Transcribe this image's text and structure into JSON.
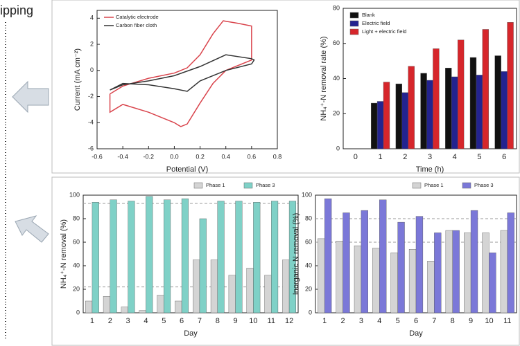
{
  "side_label": "ipping",
  "chart_data": [
    {
      "type": "line",
      "xlabel": "Potential (V)",
      "ylabel": "Current (mA cm⁻²)",
      "xlim": [
        -0.6,
        0.8
      ],
      "xticks": [
        -0.6,
        -0.4,
        -0.2,
        {
          "value": 0,
          "label": "0.0"
        },
        0.2,
        0.4,
        0.6,
        0.8
      ],
      "ylim": [
        -6,
        4.6
      ],
      "yticks": [
        -6,
        -4,
        -2,
        0,
        2,
        4
      ],
      "legend": "upper-left",
      "series": [
        {
          "name": "Catalytic electrode",
          "color": "#d9444c",
          "x": [
            -0.5,
            -0.4,
            -0.2,
            0,
            0.1,
            0.2,
            0.3,
            0.38,
            0.5,
            0.6,
            0.6,
            0.4,
            0.3,
            0.2,
            0.1,
            0.05,
            0,
            -0.2,
            -0.4,
            -0.5,
            -0.5
          ],
          "values": [
            -1.8,
            -1.2,
            -0.6,
            -0.2,
            0.2,
            1.2,
            2.8,
            3.8,
            3.6,
            3.4,
            0.8,
            0,
            -1,
            -2.5,
            -4.1,
            -4.3,
            -4,
            -3.2,
            -2.6,
            -3.2,
            -1.8
          ]
        },
        {
          "name": "Carbon fiber cloth",
          "color": "#333333",
          "x": [
            -0.5,
            -0.4,
            -0.2,
            0,
            0.2,
            0.4,
            0.6,
            0.62,
            0.6,
            0.4,
            0.2,
            0.1,
            0,
            -0.2,
            -0.4,
            -0.5,
            -0.5
          ],
          "values": [
            -1.5,
            -1.1,
            -0.8,
            -0.4,
            0.3,
            1.2,
            0.9,
            0.8,
            0.5,
            0,
            -0.8,
            -1.6,
            -1.4,
            -1.1,
            -1.0,
            -1.5,
            -1.5
          ]
        }
      ]
    },
    {
      "type": "bar",
      "xlabel": "Time (h)",
      "ylabel": "NH₄⁺-N removal rate (%)",
      "categories": [
        "0",
        "1",
        "2",
        "3",
        "4",
        "5",
        "6"
      ],
      "ylim": [
        0,
        80
      ],
      "yticks": [
        0,
        20,
        40,
        60,
        80
      ],
      "legend": "upper-left",
      "series": [
        {
          "name": "Blank",
          "color": "#111111",
          "values": [
            null,
            26,
            37,
            43,
            46,
            52,
            53
          ]
        },
        {
          "name": "Electric field",
          "color": "#23238f",
          "values": [
            null,
            27,
            32,
            39,
            41,
            42,
            44
          ]
        },
        {
          "name": "Light + electric field",
          "color": "#d6262b",
          "values": [
            null,
            38,
            47,
            57,
            62,
            68,
            72
          ]
        }
      ]
    },
    {
      "type": "bar",
      "xlabel": "Day",
      "ylabel": "NH₄⁺-N removal (%)",
      "categories": [
        "1",
        "2",
        "3",
        "4",
        "5",
        "6",
        "7",
        "8",
        "9",
        "10",
        "11",
        "12"
      ],
      "ylim": [
        0,
        100
      ],
      "yticks": [
        0,
        20,
        40,
        60,
        80,
        100
      ],
      "legend": "above",
      "reference_lines": [
        93,
        22
      ],
      "series": [
        {
          "name": "Phase 1",
          "color": "#d4d4d4",
          "values": [
            10,
            14,
            5,
            2,
            15,
            10,
            45,
            45,
            32,
            38,
            32,
            45
          ]
        },
        {
          "name": "Phase 3",
          "color": "#7fd1c7",
          "values": [
            94,
            96,
            95,
            99,
            96,
            97,
            80,
            95,
            95,
            94,
            95,
            95
          ]
        }
      ]
    },
    {
      "type": "bar",
      "xlabel": "Day",
      "ylabel": "Inorganic N removal (%)",
      "categories": [
        "1",
        "2",
        "3",
        "4",
        "5",
        "6",
        "7",
        "8",
        "9",
        "10",
        "11"
      ],
      "ylim": [
        0,
        100
      ],
      "yticks": [
        0,
        20,
        40,
        60,
        80,
        100
      ],
      "legend": "above",
      "reference_lines": [
        80,
        60
      ],
      "series": [
        {
          "name": "Phase 1",
          "color": "#d4d4d4",
          "values": [
            63,
            61,
            57,
            55,
            51,
            54,
            44,
            70,
            68,
            68,
            70
          ]
        },
        {
          "name": "Phase 3",
          "color": "#7b78d8",
          "values": [
            97,
            85,
            87,
            96,
            77,
            82,
            68,
            70,
            87,
            51,
            85
          ]
        }
      ]
    }
  ]
}
